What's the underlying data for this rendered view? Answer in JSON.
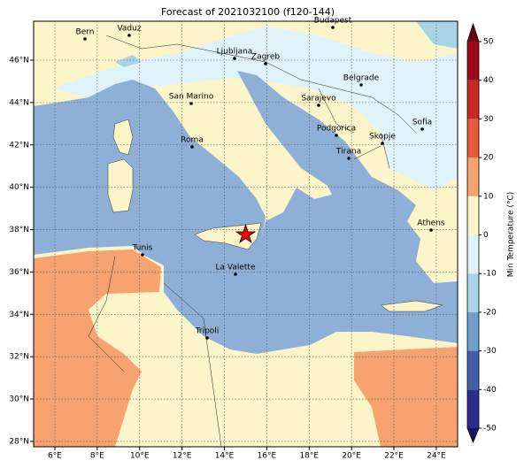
{
  "title": "Forecast of 2021032100 (f120-144)",
  "xticks": [
    {
      "value": 6,
      "label": "6°E"
    },
    {
      "value": 8,
      "label": "8°E"
    },
    {
      "value": 10,
      "label": "10°E"
    },
    {
      "value": 12,
      "label": "12°E"
    },
    {
      "value": 14,
      "label": "14°E"
    },
    {
      "value": 16,
      "label": "16°E"
    },
    {
      "value": 18,
      "label": "18°E"
    },
    {
      "value": 20,
      "label": "20°E"
    },
    {
      "value": 22,
      "label": "22°E"
    },
    {
      "value": 24,
      "label": "24°E"
    }
  ],
  "yticks": [
    {
      "value": 28,
      "label": "28°N"
    },
    {
      "value": 30,
      "label": "30°N"
    },
    {
      "value": 32,
      "label": "32°N"
    },
    {
      "value": 34,
      "label": "34°N"
    },
    {
      "value": 36,
      "label": "36°N"
    },
    {
      "value": 38,
      "label": "38°N"
    },
    {
      "value": 40,
      "label": "40°N"
    },
    {
      "value": 42,
      "label": "42°N"
    },
    {
      "value": 44,
      "label": "44°N"
    },
    {
      "value": 46,
      "label": "46°N"
    }
  ],
  "cities": [
    "Bern",
    "Vaduz",
    "Budapest",
    "Ljubljana",
    "Zagreb",
    "Belgrade",
    "Sarajevo",
    "San Marino",
    "Sofia",
    "Podgorica",
    "Skopje",
    "Roma",
    "Tirana",
    "Athens",
    "Tunis",
    "La Valette",
    "Tripoli"
  ],
  "colorbar": {
    "label": "Min Temperature (°C)",
    "ticks": [
      -50,
      -40,
      -30,
      -20,
      -10,
      0,
      10,
      20,
      30,
      40,
      50
    ],
    "colors": [
      "#15155f",
      "#2c2b8f",
      "#3f60a6",
      "#6f9fcb",
      "#a8d4e6",
      "#e0f3fa",
      "#fdf5ca",
      "#f7a36f",
      "#e85a3c",
      "#c9281f",
      "#9e0a1a",
      "#6a0010"
    ]
  }
}
